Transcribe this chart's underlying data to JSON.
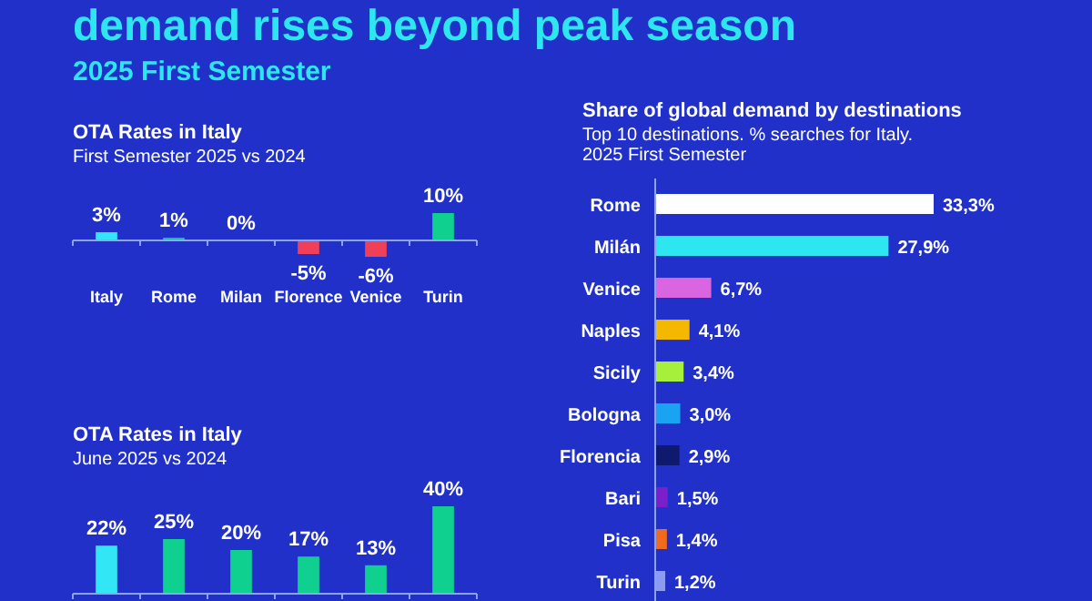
{
  "chart_data": [
    {
      "type": "other",
      "title": "demand rises beyond peak season",
      "subtitle": "2025 First Semester"
    },
    {
      "type": "bar",
      "title": "OTA Rates in Italy",
      "subtitle": "First Semester 2025 vs 2024",
      "categories": [
        "Italy",
        "Rome",
        "Milan",
        "Florence",
        "Venice",
        "Turin"
      ],
      "values": [
        3,
        1,
        0,
        -5,
        -6,
        10
      ],
      "colors": [
        "#33e6f5",
        "#1fb8a8",
        "#10d090",
        "#f04058",
        "#f04058",
        "#10d090"
      ],
      "value_labels": [
        "3%",
        "1%",
        "0%",
        "-5%",
        "-6%",
        "10%"
      ],
      "ref_lines": [
        {
          "axis": "y",
          "value": 0,
          "color": "#8ea2ff"
        }
      ]
    },
    {
      "type": "bar",
      "title": "OTA Rates in Italy",
      "subtitle": "June 2025 vs 2024",
      "categories": [
        null,
        null,
        null,
        null,
        null,
        null
      ],
      "values": [
        22,
        25,
        20,
        17,
        13,
        40
      ],
      "colors": [
        "#33e6f5",
        "#10d090",
        "#10d090",
        "#10d090",
        "#10d090",
        "#10d090"
      ],
      "value_labels": [
        "22%",
        "25%",
        "20%",
        "17%",
        "13%",
        "40%"
      ]
    },
    {
      "type": "bar",
      "orientation": "horizontal",
      "title": "Share of global demand by destinations",
      "subtitle": "Top 10 destinations. % searches for Italy. 2025 First Semester",
      "categories": [
        "Rome",
        "Milán",
        "Venice",
        "Naples",
        "Sicily",
        "Bologna",
        "Florencia",
        "Bari",
        "Pisa",
        "Turin"
      ],
      "values": [
        33.3,
        27.9,
        6.7,
        4.1,
        3.4,
        3.0,
        2.9,
        1.5,
        1.4,
        1.2
      ],
      "colors": [
        "#ffffff",
        "#2ee6f0",
        "#d966e0",
        "#f5b800",
        "#a6f03c",
        "#1aa3f0",
        "#0f1a6e",
        "#7a1fc9",
        "#f26a1b",
        "#8c9cf0"
      ],
      "value_labels": [
        "33,3%",
        "27,9%",
        "6,7%",
        "4,1%",
        "3,4%",
        "3,0%",
        "2,9%",
        "1,5%",
        "1,4%",
        "1,2%"
      ]
    }
  ]
}
